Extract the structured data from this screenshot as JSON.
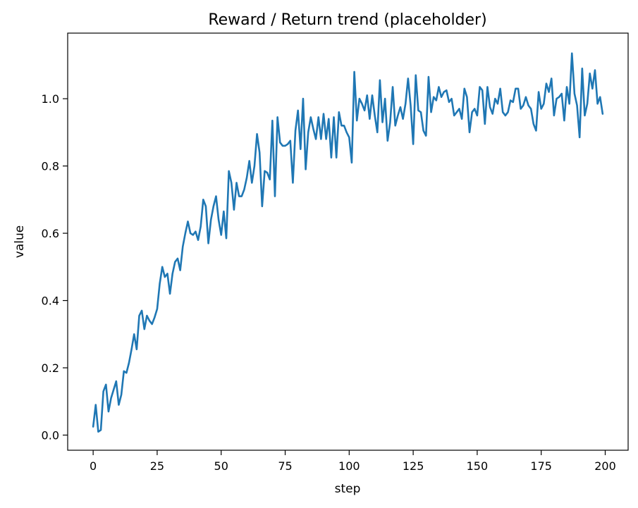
{
  "chart_data": {
    "type": "line",
    "title": "Reward / Return trend (placeholder)",
    "xlabel": "step",
    "ylabel": "value",
    "xlim": [
      -9.95,
      208.95
    ],
    "ylim": [
      -0.045,
      1.195
    ],
    "xticks": [
      0,
      25,
      50,
      75,
      100,
      125,
      150,
      175,
      200
    ],
    "xtick_labels": [
      "0",
      "25",
      "50",
      "75",
      "100",
      "125",
      "150",
      "175",
      "200"
    ],
    "yticks": [
      0.0,
      0.2,
      0.4,
      0.6,
      0.8,
      1.0
    ],
    "ytick_labels": [
      "0.0",
      "0.2",
      "0.4",
      "0.6",
      "0.8",
      "1.0"
    ],
    "grid": false,
    "legend": "none",
    "series": [
      {
        "color": "#1f77b4",
        "x": [
          0,
          1,
          2,
          3,
          4,
          5,
          6,
          7,
          8,
          9,
          10,
          11,
          12,
          13,
          14,
          15,
          16,
          17,
          18,
          19,
          20,
          21,
          22,
          23,
          24,
          25,
          26,
          27,
          28,
          29,
          30,
          31,
          32,
          33,
          34,
          35,
          36,
          37,
          38,
          39,
          40,
          41,
          42,
          43,
          44,
          45,
          46,
          47,
          48,
          49,
          50,
          51,
          52,
          53,
          54,
          55,
          56,
          57,
          58,
          59,
          60,
          61,
          62,
          63,
          64,
          65,
          66,
          67,
          68,
          69,
          70,
          71,
          72,
          73,
          74,
          75,
          76,
          77,
          78,
          79,
          80,
          81,
          82,
          83,
          84,
          85,
          86,
          87,
          88,
          89,
          90,
          91,
          92,
          93,
          94,
          95,
          96,
          97,
          98,
          99,
          100,
          101,
          102,
          103,
          104,
          105,
          106,
          107,
          108,
          109,
          110,
          111,
          112,
          113,
          114,
          115,
          116,
          117,
          118,
          119,
          120,
          121,
          122,
          123,
          124,
          125,
          126,
          127,
          128,
          129,
          130,
          131,
          132,
          133,
          134,
          135,
          136,
          137,
          138,
          139,
          140,
          141,
          142,
          143,
          144,
          145,
          146,
          147,
          148,
          149,
          150,
          151,
          152,
          153,
          154,
          155,
          156,
          157,
          158,
          159,
          160,
          161,
          162,
          163,
          164,
          165,
          166,
          167,
          168,
          169,
          170,
          171,
          172,
          173,
          174,
          175,
          176,
          177,
          178,
          179,
          180,
          181,
          182,
          183,
          184,
          185,
          186,
          187,
          188,
          189,
          190,
          191,
          192,
          193,
          194,
          195,
          196,
          197,
          198,
          199
        ],
        "y": [
          0.025,
          0.09,
          0.01,
          0.015,
          0.13,
          0.15,
          0.07,
          0.11,
          0.135,
          0.16,
          0.09,
          0.12,
          0.19,
          0.185,
          0.215,
          0.255,
          0.3,
          0.255,
          0.355,
          0.37,
          0.315,
          0.355,
          0.34,
          0.33,
          0.35,
          0.375,
          0.45,
          0.5,
          0.47,
          0.48,
          0.42,
          0.48,
          0.515,
          0.525,
          0.49,
          0.56,
          0.6,
          0.635,
          0.6,
          0.595,
          0.605,
          0.58,
          0.62,
          0.7,
          0.68,
          0.57,
          0.64,
          0.68,
          0.71,
          0.64,
          0.595,
          0.665,
          0.585,
          0.785,
          0.75,
          0.67,
          0.75,
          0.71,
          0.71,
          0.73,
          0.765,
          0.815,
          0.75,
          0.8,
          0.895,
          0.84,
          0.68,
          0.785,
          0.78,
          0.76,
          0.935,
          0.71,
          0.945,
          0.87,
          0.86,
          0.86,
          0.865,
          0.875,
          0.75,
          0.905,
          0.965,
          0.85,
          1.0,
          0.79,
          0.9,
          0.945,
          0.91,
          0.88,
          0.945,
          0.88,
          0.955,
          0.88,
          0.94,
          0.825,
          0.945,
          0.825,
          0.96,
          0.92,
          0.92,
          0.9,
          0.885,
          0.81,
          1.08,
          0.935,
          1.0,
          0.985,
          0.965,
          1.01,
          0.94,
          1.01,
          0.95,
          0.9,
          1.055,
          0.93,
          1.0,
          0.875,
          0.93,
          1.035,
          0.92,
          0.95,
          0.975,
          0.94,
          0.985,
          1.06,
          0.98,
          0.865,
          1.07,
          0.965,
          0.96,
          0.905,
          0.89,
          1.065,
          0.96,
          1.005,
          0.995,
          1.035,
          1.005,
          1.02,
          1.025,
          0.99,
          1.0,
          0.95,
          0.96,
          0.97,
          0.94,
          1.03,
          1.005,
          0.9,
          0.96,
          0.97,
          0.95,
          1.035,
          1.025,
          0.925,
          1.035,
          0.975,
          0.955,
          1.0,
          0.985,
          1.03,
          0.96,
          0.95,
          0.96,
          0.995,
          0.99,
          1.03,
          1.03,
          0.97,
          0.98,
          1.005,
          0.98,
          0.97,
          0.925,
          0.905,
          1.02,
          0.97,
          0.985,
          1.045,
          1.02,
          1.06,
          0.95,
          1.0,
          1.005,
          1.015,
          0.935,
          1.035,
          0.985,
          1.135,
          1.015,
          0.98,
          0.885,
          1.09,
          0.95,
          0.985,
          1.075,
          1.03,
          1.085,
          0.985,
          1.005,
          0.955
        ]
      }
    ]
  }
}
